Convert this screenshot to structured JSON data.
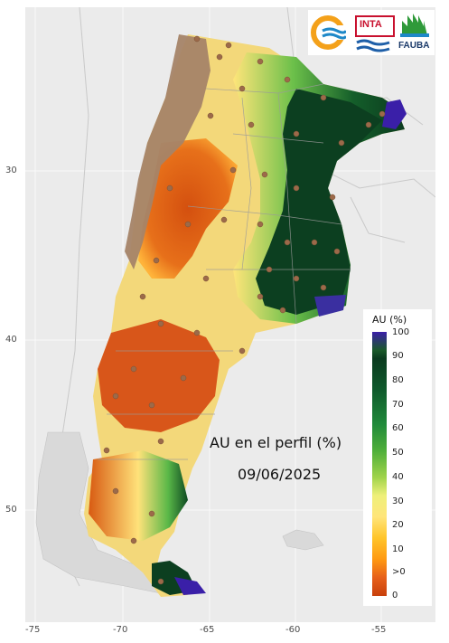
{
  "map": {
    "title": "AU en el perfil (%)",
    "date": "09/06/2025",
    "x_ticks": [
      "-75",
      "-70",
      "-65",
      "-60",
      "-55"
    ],
    "y_ticks": [
      "30",
      "40",
      "50"
    ]
  },
  "legend": {
    "title": "AU (%)",
    "labels": [
      "100",
      "90",
      "80",
      "70",
      "60",
      "50",
      "40",
      "30",
      "20",
      "10",
      ">0",
      "0"
    ]
  },
  "logos": {
    "items": [
      "INTA",
      "FAUBA"
    ]
  },
  "colors": {
    "background": "#ebebeb",
    "dry": "#c8400c",
    "wet": "#0b3b1f",
    "saturated": "#3a1fa8"
  }
}
